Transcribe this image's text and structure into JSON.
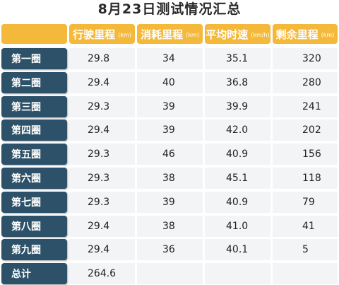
{
  "title": "8月23日测试情况汇总",
  "colors": {
    "header_bg": "#f4b93a",
    "row_label_bg": "#2c5168",
    "cell_bg": "#f3f4f6",
    "text": "#222222"
  },
  "chart_data": {
    "type": "table",
    "title": "8月23日测试情况汇总",
    "columns": [
      {
        "label": "行驶里程",
        "unit": "(km)"
      },
      {
        "label": "消耗里程",
        "unit": "(km)"
      },
      {
        "label": "平均时速",
        "unit": "(km/h)"
      },
      {
        "label": "剩余里程",
        "unit": "(km)"
      }
    ],
    "rows": [
      {
        "label": "第一圈",
        "values": [
          "29.8",
          "34",
          "35.1",
          "320"
        ]
      },
      {
        "label": "第二圈",
        "values": [
          "29.4",
          "40",
          "36.8",
          "280"
        ]
      },
      {
        "label": "第三圈",
        "values": [
          "29.3",
          "39",
          "39.9",
          "241"
        ]
      },
      {
        "label": "第四圈",
        "values": [
          "29.4",
          "39",
          "42.0",
          "202"
        ]
      },
      {
        "label": "第五圈",
        "values": [
          "29.3",
          "46",
          "40.9",
          "156"
        ]
      },
      {
        "label": "第六圈",
        "values": [
          "29.3",
          "38",
          "45.1",
          "118"
        ]
      },
      {
        "label": "第七圈",
        "values": [
          "29.3",
          "39",
          "40.9",
          "79"
        ]
      },
      {
        "label": "第八圈",
        "values": [
          "29.4",
          "38",
          "41.0",
          "41"
        ]
      },
      {
        "label": "第九圈",
        "values": [
          "29.4",
          "36",
          "40.1",
          "5"
        ]
      },
      {
        "label": "总计",
        "values": [
          "264.6",
          "",
          "",
          ""
        ]
      }
    ]
  }
}
